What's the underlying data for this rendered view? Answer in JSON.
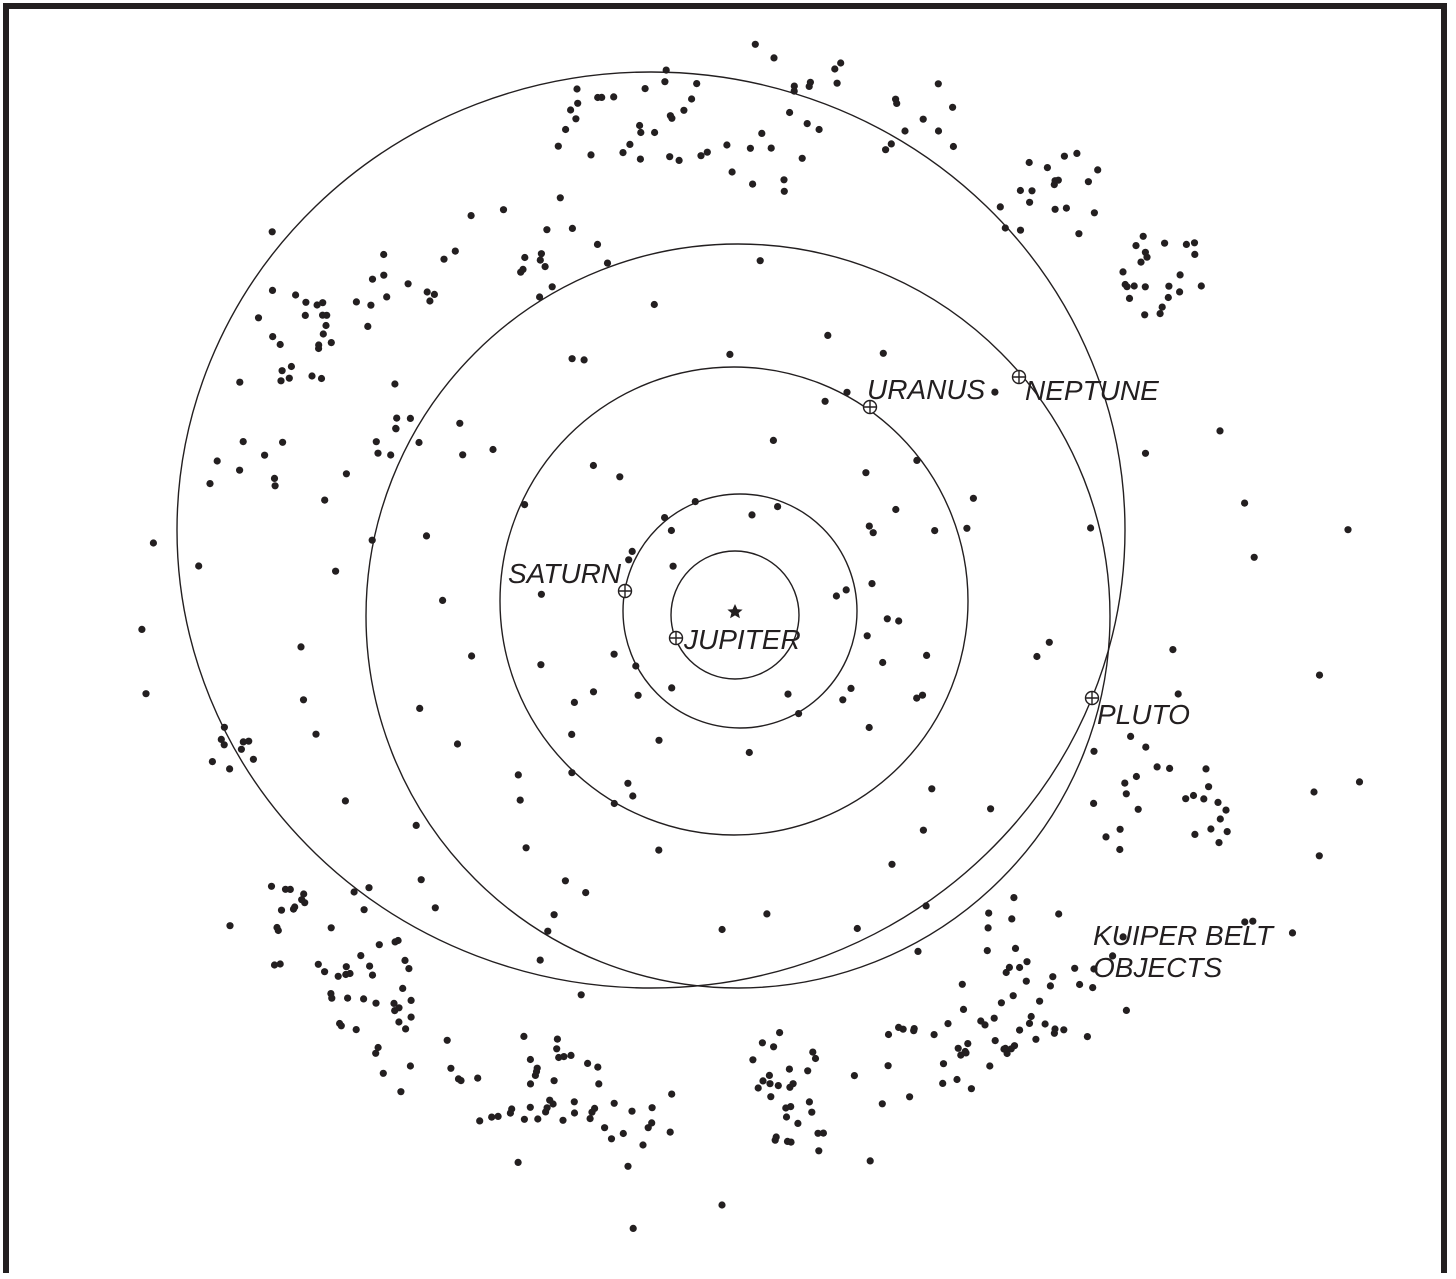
{
  "diagram": {
    "sun_symbol": "star-icon",
    "planet_symbol": "circle-plus-icon",
    "colors": {
      "ink": "#231f20",
      "background": "#ffffff"
    },
    "planets": [
      {
        "id": "jupiter",
        "label": "JUPITER"
      },
      {
        "id": "saturn",
        "label": "SATURN"
      },
      {
        "id": "uranus",
        "label": "URANUS"
      },
      {
        "id": "neptune",
        "label": "NEPTUNE"
      },
      {
        "id": "pluto",
        "label": "PLUTO"
      }
    ],
    "kuiper_belt_label": [
      "KUIPER BELT",
      "OBJECTS"
    ]
  }
}
